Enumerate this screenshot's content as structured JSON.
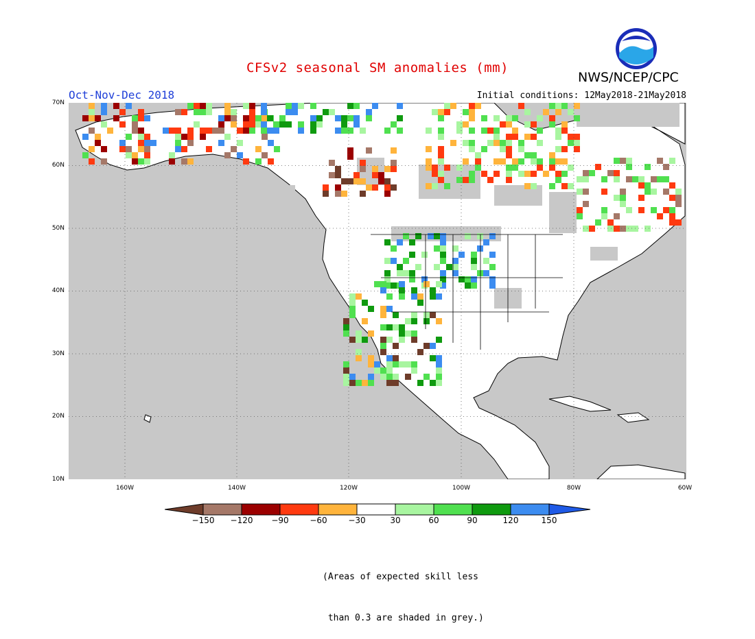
{
  "header": {
    "title": "CFSv2 seasonal SM anomalies (mm)",
    "agency": "NWS/NCEP/CPC",
    "logo_text": "NOAA",
    "season": "Oct-Nov-Dec 2018",
    "initial_conditions": "Initial conditions: 12May2018-21May2018"
  },
  "map": {
    "lat_labels": [
      "70N",
      "60N",
      "50N",
      "40N",
      "30N",
      "20N",
      "10N"
    ],
    "lon_labels": [
      "160W",
      "140W",
      "120W",
      "100W",
      "80W",
      "60W"
    ],
    "ocean_color": "#c8c8c8",
    "land_color": "#ffffff",
    "skill_mask_color": "#c8c8c8"
  },
  "colorbar": {
    "tick_labels": [
      "-150",
      "-120",
      "-90",
      "-60",
      "-30",
      "30",
      "60",
      "90",
      "120",
      "150"
    ],
    "colors": [
      "#6e3c2a",
      "#a57868",
      "#9b0000",
      "#ff3a10",
      "#ffb43c",
      "#ffffff",
      "#a8f5a0",
      "#50e050",
      "#0f9a0f",
      "#3c8cf0",
      "#1f5ae6"
    ]
  },
  "note": {
    "line1": "(Areas of expected skill less",
    "line2": " than 0.3 are shaded in grey.)"
  }
}
